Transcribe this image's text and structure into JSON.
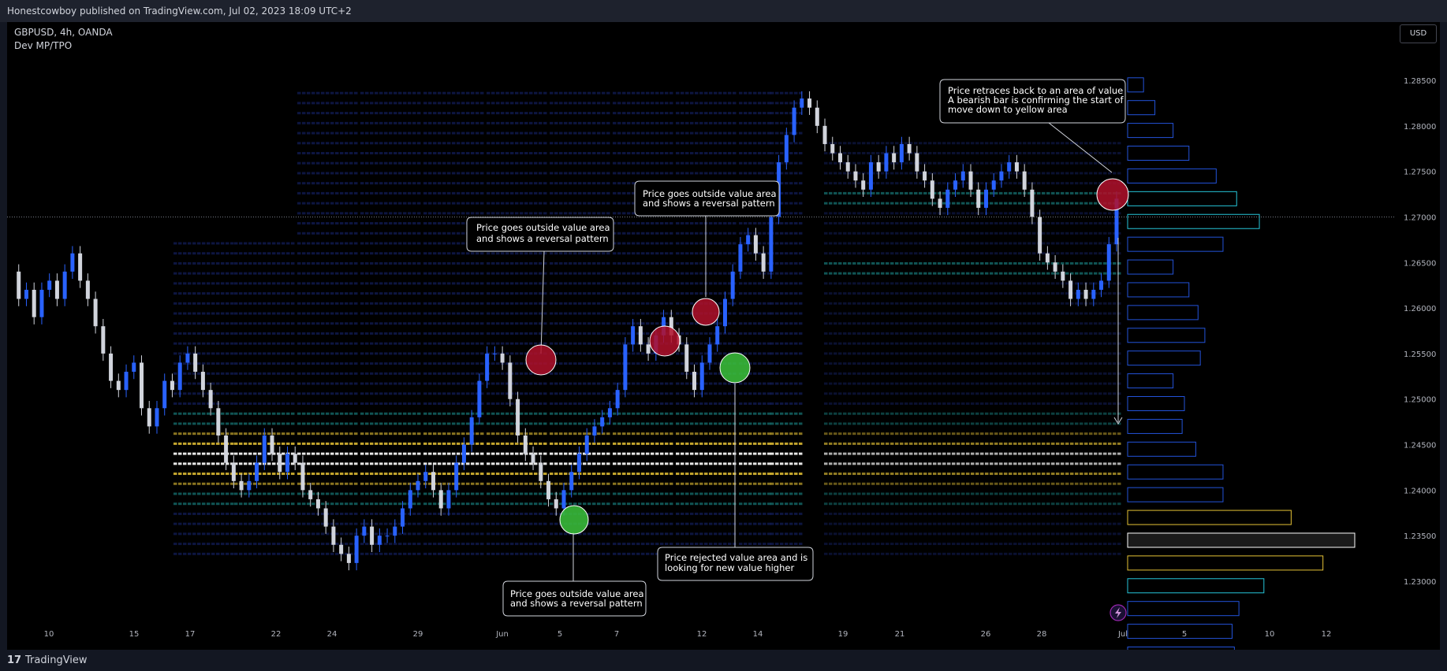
{
  "header": {
    "publish_line": "Honestcowboy published on TradingView.com, Jul 02, 2023 18:09 UTC+2"
  },
  "legend": {
    "symbol": "GBPUSD, 4h, OANDA",
    "indicator": "Dev MP/TPO"
  },
  "currency_button": "USD",
  "footer": {
    "logo_glyph": "17",
    "brand": "TradingView"
  },
  "colors": {
    "bull": "#2962ff",
    "bear": "#d1d4dc",
    "value_area": "#e5c235",
    "poc": "#ffffff",
    "teal": "#1a8c8c",
    "navy": "#1a2a80",
    "bubble_red": "#b2102a",
    "bubble_green": "#3cc43c",
    "price_line": "#787b86"
  },
  "chart_data": {
    "type": "candlestick",
    "symbol": "GBPUSD",
    "timeframe": "4h",
    "y_ticks": [
      "1.28500",
      "1.28000",
      "1.27500",
      "1.27000",
      "1.26500",
      "1.26000",
      "1.25500",
      "1.25000",
      "1.24500",
      "1.24000",
      "1.23500",
      "1.23000"
    ],
    "ylim": [
      1.2275,
      1.2885
    ],
    "x_ticks": [
      "10",
      "15",
      "17",
      "22",
      "24",
      "29",
      "Jun",
      "5",
      "7",
      "12",
      "14",
      "19",
      "21",
      "26",
      "28",
      "Jul",
      "5",
      "10",
      "12"
    ],
    "current_price": 1.27,
    "close_path": [
      1.264,
      1.261,
      1.262,
      1.259,
      1.262,
      1.263,
      1.261,
      1.264,
      1.266,
      1.263,
      1.261,
      1.258,
      1.255,
      1.252,
      1.251,
      1.253,
      1.254,
      1.249,
      1.247,
      1.249,
      1.252,
      1.251,
      1.254,
      1.255,
      1.253,
      1.251,
      1.249,
      1.246,
      1.243,
      1.241,
      1.24,
      1.241,
      1.243,
      1.246,
      1.244,
      1.242,
      1.244,
      1.243,
      1.24,
      1.239,
      1.238,
      1.236,
      1.234,
      1.233,
      1.232,
      1.235,
      1.236,
      1.234,
      1.235,
      1.235,
      1.236,
      1.238,
      1.24,
      1.241,
      1.242,
      1.24,
      1.238,
      1.24,
      1.243,
      1.245,
      1.248,
      1.252,
      1.255,
      1.255,
      1.254,
      1.25,
      1.246,
      1.244,
      1.243,
      1.241,
      1.239,
      1.238,
      1.24,
      1.242,
      1.244,
      1.246,
      1.247,
      1.248,
      1.249,
      1.251,
      1.256,
      1.258,
      1.256,
      1.255,
      1.257,
      1.259,
      1.257,
      1.256,
      1.253,
      1.251,
      1.254,
      1.256,
      1.258,
      1.261,
      1.264,
      1.267,
      1.268,
      1.266,
      1.264,
      1.27,
      1.276,
      1.279,
      1.282,
      1.283,
      1.282,
      1.28,
      1.278,
      1.277,
      1.276,
      1.275,
      1.274,
      1.273,
      1.276,
      1.275,
      1.277,
      1.276,
      1.278,
      1.277,
      1.275,
      1.274,
      1.272,
      1.271,
      1.273,
      1.274,
      1.275,
      1.273,
      1.271,
      1.273,
      1.274,
      1.275,
      1.276,
      1.275,
      1.273,
      1.27,
      1.266,
      1.265,
      1.264,
      1.263,
      1.261,
      1.262,
      1.261,
      1.262,
      1.263,
      1.267,
      1.272
    ],
    "volume_profile": [
      {
        "price": 1.2845,
        "len": 0.07,
        "color": "navy"
      },
      {
        "price": 1.282,
        "len": 0.12,
        "color": "navy"
      },
      {
        "price": 1.2795,
        "len": 0.2,
        "color": "navy"
      },
      {
        "price": 1.277,
        "len": 0.27,
        "color": "navy"
      },
      {
        "price": 1.2745,
        "len": 0.39,
        "color": "navy"
      },
      {
        "price": 1.272,
        "len": 0.48,
        "color": "teal"
      },
      {
        "price": 1.2695,
        "len": 0.58,
        "color": "teal"
      },
      {
        "price": 1.267,
        "len": 0.42,
        "color": "navy"
      },
      {
        "price": 1.2645,
        "len": 0.2,
        "color": "navy"
      },
      {
        "price": 1.262,
        "len": 0.27,
        "color": "navy"
      },
      {
        "price": 1.2595,
        "len": 0.31,
        "color": "navy"
      },
      {
        "price": 1.257,
        "len": 0.34,
        "color": "navy"
      },
      {
        "price": 1.2545,
        "len": 0.32,
        "color": "navy"
      },
      {
        "price": 1.252,
        "len": 0.2,
        "color": "navy"
      },
      {
        "price": 1.2495,
        "len": 0.25,
        "color": "navy"
      },
      {
        "price": 1.247,
        "len": 0.24,
        "color": "navy"
      },
      {
        "price": 1.2445,
        "len": 0.3,
        "color": "navy"
      },
      {
        "price": 1.242,
        "len": 0.42,
        "color": "navy"
      },
      {
        "price": 1.2395,
        "len": 0.42,
        "color": "navy"
      },
      {
        "price": 1.237,
        "len": 0.72,
        "color": "value_area"
      },
      {
        "price": 1.2345,
        "len": 1.0,
        "color": "poc"
      },
      {
        "price": 1.232,
        "len": 0.86,
        "color": "value_area"
      },
      {
        "price": 1.2295,
        "len": 0.6,
        "color": "teal"
      },
      {
        "price": 1.227,
        "len": 0.49,
        "color": "navy"
      },
      {
        "price": 1.2245,
        "len": 0.46,
        "color": "navy"
      },
      {
        "price": 1.222,
        "len": 0.47,
        "color": "navy"
      },
      {
        "price": 1.2195,
        "len": 0.27,
        "color": "navy"
      }
    ]
  },
  "annotations": [
    {
      "id": "a1",
      "lines": [
        "Price goes outside value area",
        "and shows a reversal pattern"
      ]
    },
    {
      "id": "a2",
      "lines": [
        "Price goes outside value area",
        "and shows a reversal pattern"
      ]
    },
    {
      "id": "a3",
      "lines": [
        "Price retraces back to an area of value",
        "A bearish bar is confirming the start of",
        "move down to yellow area"
      ]
    },
    {
      "id": "a4",
      "lines": [
        "Price rejected value area and is",
        "looking for new value higher"
      ]
    },
    {
      "id": "a5",
      "lines": [
        "Price goes outside value area",
        "and shows a reversal pattern"
      ]
    }
  ]
}
